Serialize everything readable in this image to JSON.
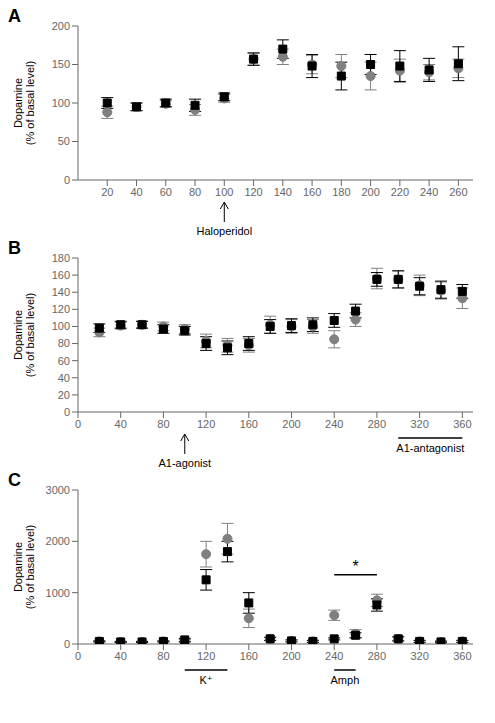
{
  "chart_data": [
    {
      "type": "scatter",
      "title": "A",
      "ylabel": "Dopamine\n(% of basal level)",
      "x": [
        20,
        40,
        60,
        80,
        100,
        120,
        140,
        160,
        180,
        200,
        220,
        240,
        260
      ],
      "series": [
        {
          "color": "#808080",
          "marker": "circle",
          "values": [
            88,
            95,
            99,
            91,
            106,
            157,
            160,
            150,
            148,
            135,
            142,
            140,
            145
          ],
          "errors": [
            8,
            5,
            4,
            7,
            5,
            8,
            10,
            12,
            15,
            18,
            15,
            10,
            12
          ]
        },
        {
          "color": "#000000",
          "marker": "square",
          "values": [
            100,
            95,
            100,
            97,
            108,
            157,
            170,
            148,
            135,
            150,
            148,
            143,
            151
          ],
          "errors": [
            7,
            5,
            5,
            8,
            5,
            8,
            12,
            15,
            18,
            13,
            20,
            15,
            22
          ]
        }
      ],
      "xlim": [
        0,
        270
      ],
      "xticks": [
        20,
        40,
        60,
        80,
        100,
        120,
        140,
        160,
        180,
        200,
        220,
        240,
        260
      ],
      "ylim": [
        0,
        200
      ],
      "yticks": [
        0,
        50,
        100,
        150,
        200
      ],
      "grid": false,
      "annotations": [
        {
          "text": "Haloperidol",
          "x": 100
        }
      ]
    },
    {
      "type": "scatter",
      "title": "B",
      "ylabel": "Dopamine\n(% of basal level)",
      "x": [
        20,
        40,
        60,
        80,
        100,
        120,
        140,
        160,
        180,
        200,
        220,
        240,
        260,
        280,
        300,
        320,
        340,
        360
      ],
      "series": [
        {
          "color": "#808080",
          "marker": "circle",
          "values": [
            93,
            101,
            102,
            100,
            97,
            83,
            78,
            78,
            102,
            100,
            100,
            85,
            108,
            156,
            155,
            148,
            142,
            133
          ],
          "errors": [
            5,
            4,
            4,
            5,
            5,
            8,
            8,
            8,
            10,
            8,
            8,
            10,
            8,
            12,
            10,
            12,
            10,
            12
          ]
        },
        {
          "color": "#000000",
          "marker": "square",
          "values": [
            98,
            102,
            102,
            97,
            95,
            80,
            75,
            80,
            100,
            101,
            102,
            107,
            118,
            155,
            155,
            147,
            143,
            141
          ],
          "errors": [
            5,
            4,
            4,
            5,
            5,
            8,
            8,
            8,
            8,
            8,
            8,
            8,
            8,
            8,
            10,
            10,
            10,
            8
          ]
        }
      ],
      "xlim": [
        0,
        370
      ],
      "xticks": [
        0,
        40,
        80,
        120,
        160,
        200,
        240,
        280,
        320,
        360
      ],
      "ylim": [
        0,
        180
      ],
      "yticks": [
        0,
        20,
        40,
        60,
        80,
        100,
        120,
        140,
        160,
        180
      ],
      "grid": false,
      "annotations": [
        {
          "text": "A1-agonist",
          "x": 100
        },
        {
          "text": "A1-antagonist",
          "x_start": 300,
          "x_end": 360
        }
      ]
    },
    {
      "type": "scatter",
      "title": "C",
      "ylabel": "Dopamine\n(% of basal level)",
      "x": [
        20,
        40,
        60,
        80,
        100,
        120,
        140,
        160,
        180,
        200,
        220,
        240,
        260,
        280,
        300,
        320,
        340,
        360
      ],
      "series": [
        {
          "color": "#808080",
          "marker": "circle",
          "values": [
            50,
            40,
            40,
            50,
            60,
            1750,
            2050,
            500,
            100,
            60,
            50,
            560,
            200,
            850,
            100,
            50,
            40,
            50
          ],
          "errors": [
            10,
            10,
            10,
            10,
            30,
            250,
            300,
            180,
            30,
            20,
            20,
            100,
            80,
            120,
            40,
            20,
            15,
            20
          ]
        },
        {
          "color": "#000000",
          "marker": "square",
          "values": [
            50,
            40,
            40,
            50,
            80,
            1250,
            1800,
            800,
            100,
            60,
            50,
            100,
            170,
            760,
            100,
            50,
            40,
            50
          ],
          "errors": [
            10,
            10,
            10,
            10,
            30,
            200,
            200,
            200,
            30,
            20,
            20,
            20,
            50,
            120,
            40,
            20,
            15,
            20
          ]
        }
      ],
      "xlim": [
        0,
        370
      ],
      "xticks": [
        0,
        40,
        80,
        120,
        160,
        200,
        240,
        280,
        320,
        360
      ],
      "ylim": [
        0,
        3000
      ],
      "yticks": [
        0,
        1000,
        2000,
        3000
      ],
      "grid": false,
      "annotations": [
        {
          "text": "K⁺",
          "x_start": 100,
          "x_end": 140
        },
        {
          "text": "Amph",
          "x_start": 240,
          "x_end": 260
        },
        {
          "text": "*",
          "x_start": 240,
          "x_end": 280,
          "y": 1350
        }
      ]
    }
  ]
}
